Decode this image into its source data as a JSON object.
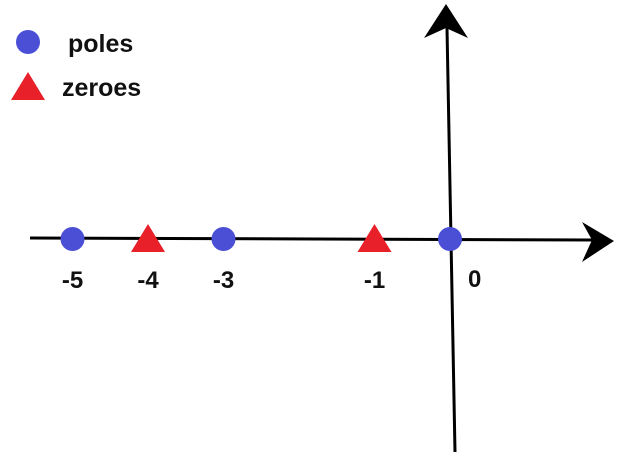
{
  "legend": {
    "poles_label": "poles",
    "zeroes_label": "zeroes"
  },
  "axis": {
    "origin_label": "0"
  },
  "points": {
    "poles": [
      {
        "value": -5,
        "label": "-5"
      },
      {
        "value": -3,
        "label": "-3"
      },
      {
        "value": 0,
        "label": ""
      }
    ],
    "zeroes": [
      {
        "value": -4,
        "label": "-4"
      },
      {
        "value": -1,
        "label": "-1"
      }
    ]
  },
  "colors": {
    "pole": "#4a4fd6",
    "zero": "#e8202a",
    "axis": "#000000"
  }
}
